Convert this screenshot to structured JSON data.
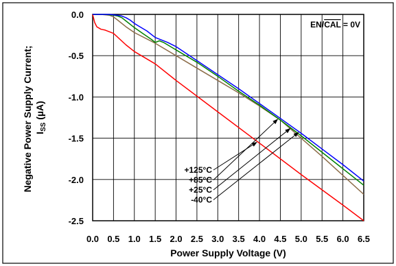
{
  "chart_data": {
    "type": "line",
    "xlabel": "Power Supply Voltage (V)",
    "ylabel_line1": "Negative Power Supply Current;",
    "ylabel_line2_main": "I",
    "ylabel_line2_sub": "SS",
    "ylabel_line2_unit": " (µA)",
    "annotation": {
      "prefix": "EN/",
      "overlined": "CAL",
      "suffix": " = 0V"
    },
    "xlim": [
      0.0,
      6.5
    ],
    "ylim": [
      -2.5,
      0.0
    ],
    "x_ticks": [
      "0.0",
      "0.5",
      "1.0",
      "1.5",
      "2.0",
      "2.5",
      "3.0",
      "3.5",
      "4.0",
      "4.5",
      "5.0",
      "5.5",
      "6.0",
      "6.5"
    ],
    "y_ticks": [
      "0.0",
      "-0.5",
      "-1.0",
      "-1.5",
      "-2.0",
      "-2.5"
    ],
    "grid": true,
    "series": [
      {
        "name": "+125°C",
        "color": "#ff0000",
        "x": [
          0.0,
          0.05,
          0.1,
          0.2,
          0.3,
          0.5,
          0.8,
          1.0,
          1.5,
          2.0,
          3.0,
          4.0,
          5.0,
          6.0,
          6.5
        ],
        "y": [
          0.0,
          -0.1,
          -0.15,
          -0.18,
          -0.19,
          -0.23,
          -0.37,
          -0.45,
          -0.6,
          -0.8,
          -1.18,
          -1.56,
          -1.94,
          -2.31,
          -2.5
        ]
      },
      {
        "name": "+85°C",
        "color": "#8b6b47",
        "x": [
          0.0,
          0.2,
          0.4,
          0.5,
          0.6,
          0.8,
          1.0,
          1.5,
          2.0,
          2.5,
          3.0,
          3.5,
          4.0,
          4.5,
          5.0,
          5.5,
          6.0,
          6.5
        ],
        "y": [
          0.0,
          0.0,
          -0.01,
          -0.03,
          -0.07,
          -0.15,
          -0.22,
          -0.35,
          -0.5,
          -0.65,
          -0.8,
          -0.95,
          -1.11,
          -1.28,
          -1.5,
          -1.72,
          -1.95,
          -2.18
        ]
      },
      {
        "name": "+25°C",
        "color": "#008000",
        "x": [
          0.0,
          0.3,
          0.5,
          0.6,
          0.7,
          0.8,
          1.0,
          1.2,
          1.4,
          1.5,
          1.6,
          1.7,
          2.0,
          2.5,
          3.0,
          3.5,
          4.0,
          4.5,
          5.0,
          5.5,
          6.0,
          6.5
        ],
        "y": [
          0.0,
          0.0,
          -0.01,
          -0.02,
          -0.04,
          -0.08,
          -0.16,
          -0.23,
          -0.3,
          -0.34,
          -0.32,
          -0.34,
          -0.43,
          -0.58,
          -0.75,
          -0.93,
          -1.1,
          -1.28,
          -1.47,
          -1.67,
          -1.87,
          -2.07
        ]
      },
      {
        "name": "-40°C",
        "color": "#0000ff",
        "x": [
          0.0,
          0.4,
          0.6,
          0.7,
          0.8,
          0.9,
          1.0,
          1.1,
          1.3,
          1.5,
          1.6,
          1.8,
          2.0,
          2.5,
          3.0,
          3.5,
          4.0,
          4.5,
          5.0,
          5.5,
          6.0,
          6.5
        ],
        "y": [
          0.0,
          0.0,
          -0.01,
          -0.02,
          -0.04,
          -0.07,
          -0.11,
          -0.14,
          -0.2,
          -0.28,
          -0.3,
          -0.34,
          -0.39,
          -0.56,
          -0.73,
          -0.9,
          -1.08,
          -1.26,
          -1.44,
          -1.63,
          -1.82,
          -2.02
        ]
      }
    ],
    "legend": [
      {
        "label": "+125°C",
        "target_series": 0,
        "target_x": 3.95
      },
      {
        "label": "+85°C",
        "target_series": 1,
        "target_x": 4.45
      },
      {
        "label": "+25°C",
        "target_series": 2,
        "target_x": 4.75
      },
      {
        "label": "-40°C",
        "target_series": 3,
        "target_x": 4.95
      }
    ]
  }
}
